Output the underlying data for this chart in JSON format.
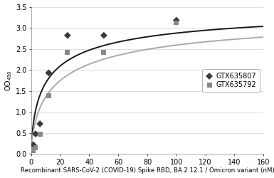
{
  "title": "",
  "xlabel": "Recombinant SARS-CoV-2 (COVID-19) Spike RBD, BA.2.12.1 / Omicron variant (nM)",
  "ylabel": "OD₄₅₀",
  "xlim": [
    0,
    160
  ],
  "ylim": [
    0,
    3.5
  ],
  "xticks": [
    0,
    20,
    40,
    60,
    80,
    100,
    120,
    140,
    160
  ],
  "yticks": [
    0,
    0.5,
    1.0,
    1.5,
    2.0,
    2.5,
    3.0,
    3.5
  ],
  "series": [
    {
      "label": "GTX635807",
      "color": "#3a3a3a",
      "marker": "D",
      "markersize": 5,
      "x_data": [
        1.5,
        3,
        6,
        12,
        25,
        50,
        100
      ],
      "y_data": [
        0.22,
        0.48,
        0.72,
        1.93,
        2.82,
        2.82,
        3.18
      ],
      "curve_color": "#1a1a1a",
      "Vmax": 3.6,
      "Km": 12.0,
      "n": 0.65
    },
    {
      "label": "GTX635792",
      "color": "#888888",
      "marker": "s",
      "markersize": 5,
      "x_data": [
        1.5,
        3,
        6,
        12,
        25,
        50,
        100
      ],
      "y_data": [
        0.08,
        0.15,
        0.48,
        1.38,
        2.42,
        2.42,
        3.12
      ],
      "curve_color": "#aaaaaa",
      "Vmax": 3.5,
      "Km": 20.0,
      "n": 0.65
    }
  ],
  "legend_loc": "center right",
  "background_color": "#ffffff",
  "grid_color": "#d0d0d0",
  "font_size": 7,
  "xlabel_fontsize": 6.2,
  "ylabel_fontsize": 7
}
